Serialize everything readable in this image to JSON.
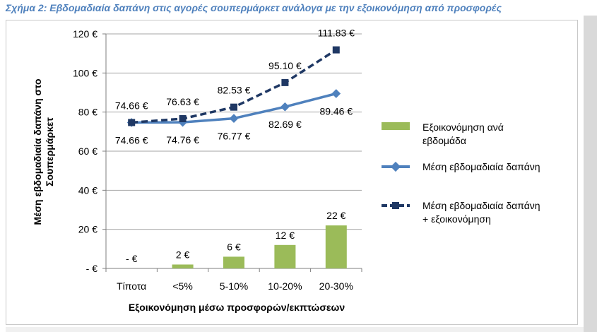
{
  "caption": "Σχήμα 2: Εβδομαδιαία δαπάνη στις αγορές σουπερμάρκετ ανάλογα με την εξοικονόμηση από προσφορές",
  "colors": {
    "caption": "#4f81bd",
    "savings_bar": "#9bbb59",
    "avg_spend": "#4f81bd",
    "spend_plus_savings": "#1f3864"
  },
  "chart_data": {
    "type": "bar",
    "title": "",
    "xlabel": "Εξοικονόμηση μέσω προσφορών/εκπτώσεων",
    "ylabel_lines": [
      "Μέση εβδομαδιαία δαπάνη στο",
      "Σουπερμάρκετ"
    ],
    "ylim": [
      0,
      120
    ],
    "yticks": [
      0,
      20,
      40,
      60,
      80,
      100,
      120
    ],
    "ytick_labels": [
      "-  €",
      "20 €",
      "40 €",
      "60 €",
      "80 €",
      "100 €",
      "120 €"
    ],
    "categories": [
      "Τίποτα",
      "<5%",
      "5-10%",
      "10-20%",
      "20-30%"
    ],
    "series": [
      {
        "name": "Εξοικονόμηση ανά εβδομάδα",
        "legend_lines": [
          "Εξοικονόμηση ανά",
          "εβδομάδα"
        ],
        "kind": "bar",
        "values": [
          0,
          2,
          6,
          12,
          22
        ],
        "labels": [
          "-  €",
          "2 €",
          "6 €",
          "12 €",
          "22 €"
        ]
      },
      {
        "name": "Μέση εβδομαδιαία δαπάνη",
        "legend_lines": [
          "Μέση εβδομαδιαία δαπάνη"
        ],
        "kind": "line",
        "style": "solid",
        "marker": "diamond",
        "values": [
          74.66,
          74.76,
          76.77,
          82.69,
          89.46
        ],
        "labels": [
          "74.66 €",
          "74.76 €",
          "76.77 €",
          "82.69 €",
          "89.46 €"
        ]
      },
      {
        "name": "Μέση εβδομαδιαία δαπάνη + εξοικονόμηση",
        "legend_lines": [
          "Μέση εβδομαδιαία δαπάνη",
          "+ εξοικονόμηση"
        ],
        "kind": "line",
        "style": "dashed",
        "marker": "square",
        "values": [
          74.66,
          76.63,
          82.53,
          95.1,
          111.83
        ],
        "labels": [
          "74.66 €",
          "76.63 €",
          "82.53 €",
          "95.10 €",
          "111.83 €"
        ]
      }
    ],
    "grid": true,
    "legend": "right"
  }
}
